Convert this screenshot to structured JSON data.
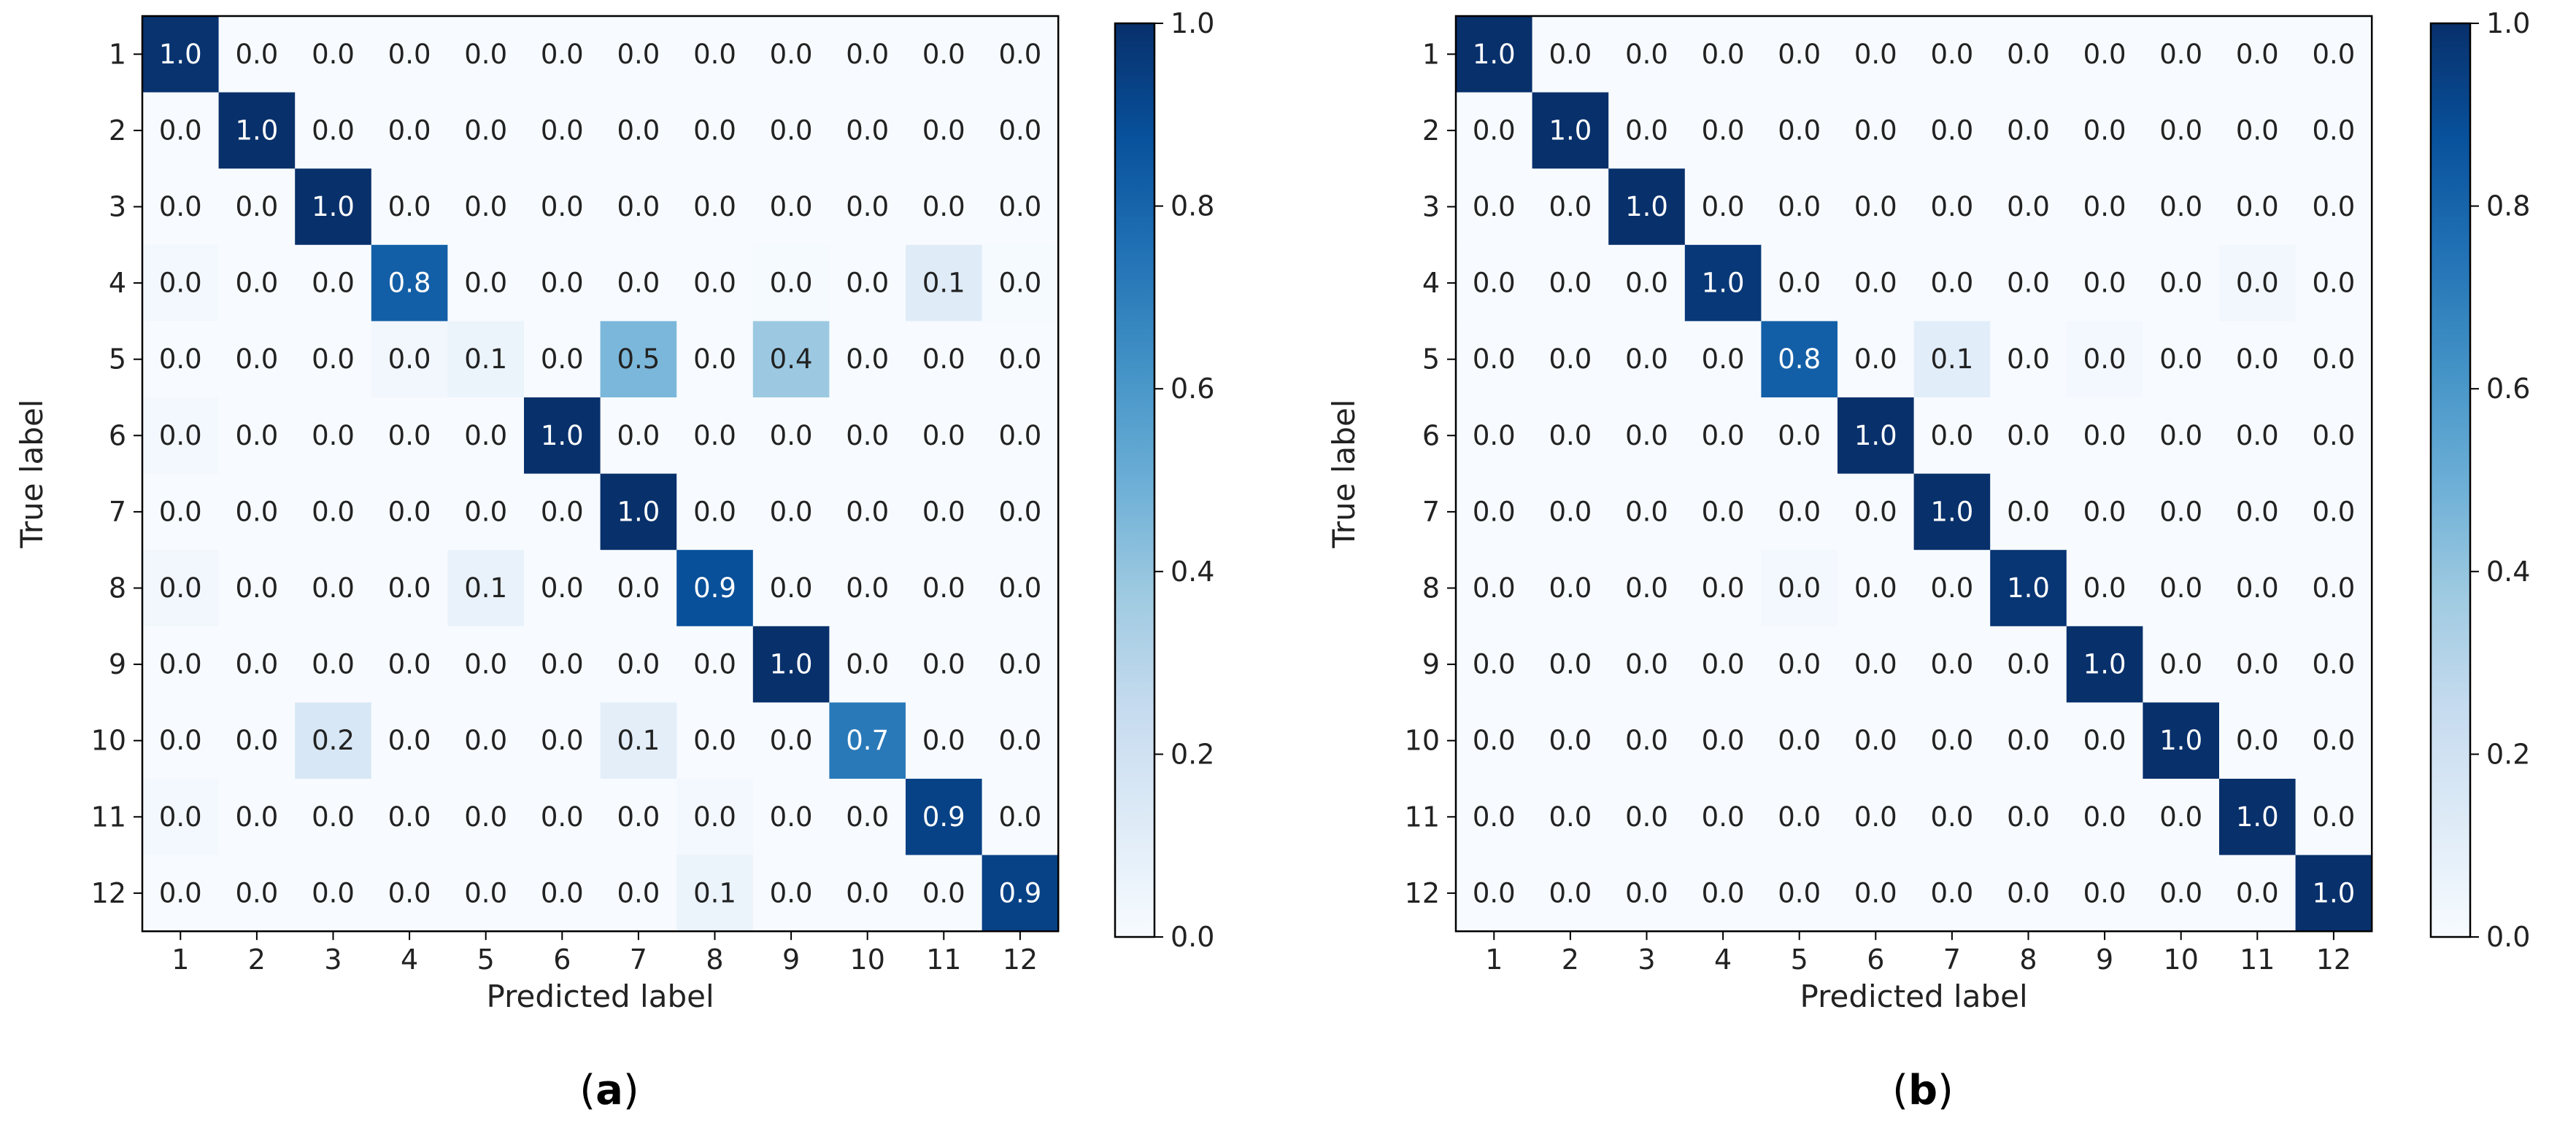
{
  "chart_data": [
    {
      "type": "heatmap",
      "panel_label": "(a)",
      "panel_letter": "a",
      "xlabel": "Predicted label",
      "ylabel": "True label",
      "x_ticks": [
        "1",
        "2",
        "3",
        "4",
        "5",
        "6",
        "7",
        "8",
        "9",
        "10",
        "11",
        "12"
      ],
      "y_ticks": [
        "1",
        "2",
        "3",
        "4",
        "5",
        "6",
        "7",
        "8",
        "9",
        "10",
        "11",
        "12"
      ],
      "colorbar": {
        "range": [
          0.0,
          1.0
        ],
        "ticks": [
          "0.0",
          "0.2",
          "0.4",
          "0.6",
          "0.8",
          "1.0"
        ],
        "colormap": "Blues"
      },
      "matrix": [
        [
          0.99,
          0.0,
          0.0,
          0.0,
          0.0,
          0.0,
          0.0,
          0.0,
          0.0,
          0.0,
          0.0,
          0.0
        ],
        [
          0.0,
          1.0,
          0.0,
          0.0,
          0.0,
          0.0,
          0.0,
          0.0,
          0.0,
          0.0,
          0.0,
          0.0
        ],
        [
          0.0,
          0.0,
          1.0,
          0.0,
          0.0,
          0.0,
          0.0,
          0.0,
          0.0,
          0.0,
          0.0,
          0.0
        ],
        [
          0.02,
          0.0,
          0.0,
          0.82,
          0.0,
          0.0,
          0.0,
          0.0,
          0.01,
          0.0,
          0.12,
          0.01
        ],
        [
          0.0,
          0.0,
          0.0,
          0.03,
          0.06,
          0.0,
          0.46,
          0.0,
          0.38,
          0.0,
          0.0,
          0.0
        ],
        [
          0.02,
          0.0,
          0.0,
          0.0,
          0.0,
          1.0,
          0.0,
          0.0,
          0.0,
          0.0,
          0.0,
          0.0
        ],
        [
          0.0,
          0.0,
          0.0,
          0.0,
          0.0,
          0.0,
          1.0,
          0.0,
          0.0,
          0.0,
          0.0,
          0.0
        ],
        [
          0.03,
          0.0,
          0.0,
          0.0,
          0.07,
          0.0,
          0.0,
          0.88,
          0.0,
          0.0,
          0.0,
          0.0
        ],
        [
          0.0,
          0.0,
          0.0,
          0.0,
          0.0,
          0.0,
          0.0,
          0.0,
          1.0,
          0.0,
          0.0,
          0.0
        ],
        [
          0.0,
          0.0,
          0.16,
          0.0,
          0.0,
          0.0,
          0.1,
          0.0,
          0.0,
          0.72,
          0.0,
          0.0
        ],
        [
          0.02,
          0.0,
          0.0,
          0.0,
          0.0,
          0.0,
          0.0,
          0.02,
          0.0,
          0.0,
          0.93,
          0.0
        ],
        [
          0.0,
          0.0,
          0.0,
          0.0,
          0.0,
          0.0,
          0.0,
          0.06,
          0.0,
          0.0,
          0.0,
          0.93
        ]
      ],
      "cell_labels": [
        [
          "1.0",
          "0.0",
          "0.0",
          "0.0",
          "0.0",
          "0.0",
          "0.0",
          "0.0",
          "0.0",
          "0.0",
          "0.0",
          "0.0"
        ],
        [
          "0.0",
          "1.0",
          "0.0",
          "0.0",
          "0.0",
          "0.0",
          "0.0",
          "0.0",
          "0.0",
          "0.0",
          "0.0",
          "0.0"
        ],
        [
          "0.0",
          "0.0",
          "1.0",
          "0.0",
          "0.0",
          "0.0",
          "0.0",
          "0.0",
          "0.0",
          "0.0",
          "0.0",
          "0.0"
        ],
        [
          "0.0",
          "0.0",
          "0.0",
          "0.8",
          "0.0",
          "0.0",
          "0.0",
          "0.0",
          "0.0",
          "0.0",
          "0.1",
          "0.0"
        ],
        [
          "0.0",
          "0.0",
          "0.0",
          "0.0",
          "0.1",
          "0.0",
          "0.5",
          "0.0",
          "0.4",
          "0.0",
          "0.0",
          "0.0"
        ],
        [
          "0.0",
          "0.0",
          "0.0",
          "0.0",
          "0.0",
          "1.0",
          "0.0",
          "0.0",
          "0.0",
          "0.0",
          "0.0",
          "0.0"
        ],
        [
          "0.0",
          "0.0",
          "0.0",
          "0.0",
          "0.0",
          "0.0",
          "1.0",
          "0.0",
          "0.0",
          "0.0",
          "0.0",
          "0.0"
        ],
        [
          "0.0",
          "0.0",
          "0.0",
          "0.0",
          "0.1",
          "0.0",
          "0.0",
          "0.9",
          "0.0",
          "0.0",
          "0.0",
          "0.0"
        ],
        [
          "0.0",
          "0.0",
          "0.0",
          "0.0",
          "0.0",
          "0.0",
          "0.0",
          "0.0",
          "1.0",
          "0.0",
          "0.0",
          "0.0"
        ],
        [
          "0.0",
          "0.0",
          "0.2",
          "0.0",
          "0.0",
          "0.0",
          "0.1",
          "0.0",
          "0.0",
          "0.7",
          "0.0",
          "0.0"
        ],
        [
          "0.0",
          "0.0",
          "0.0",
          "0.0",
          "0.0",
          "0.0",
          "0.0",
          "0.0",
          "0.0",
          "0.0",
          "0.9",
          "0.0"
        ],
        [
          "0.0",
          "0.0",
          "0.0",
          "0.0",
          "0.0",
          "0.0",
          "0.0",
          "0.1",
          "0.0",
          "0.0",
          "0.0",
          "0.9"
        ]
      ]
    },
    {
      "type": "heatmap",
      "panel_label": "(b)",
      "panel_letter": "b",
      "xlabel": "Predicted label",
      "ylabel": "True label",
      "x_ticks": [
        "1",
        "2",
        "3",
        "4",
        "5",
        "6",
        "7",
        "8",
        "9",
        "10",
        "11",
        "12"
      ],
      "y_ticks": [
        "1",
        "2",
        "3",
        "4",
        "5",
        "6",
        "7",
        "8",
        "9",
        "10",
        "11",
        "12"
      ],
      "colorbar": {
        "range": [
          0.0,
          1.0
        ],
        "ticks": [
          "0.0",
          "0.2",
          "0.4",
          "0.6",
          "0.8",
          "1.0"
        ],
        "colormap": "Blues"
      },
      "matrix": [
        [
          1.0,
          0.0,
          0.0,
          0.0,
          0.0,
          0.0,
          0.0,
          0.0,
          0.0,
          0.0,
          0.0,
          0.0
        ],
        [
          0.0,
          1.0,
          0.0,
          0.0,
          0.0,
          0.0,
          0.0,
          0.0,
          0.0,
          0.0,
          0.0,
          0.0
        ],
        [
          0.0,
          0.0,
          1.0,
          0.0,
          0.0,
          0.0,
          0.0,
          0.0,
          0.0,
          0.0,
          0.0,
          0.0
        ],
        [
          0.0,
          0.0,
          0.0,
          0.97,
          0.0,
          0.0,
          0.0,
          0.0,
          0.0,
          0.0,
          0.03,
          0.0
        ],
        [
          0.0,
          0.0,
          0.0,
          0.0,
          0.82,
          0.0,
          0.11,
          0.0,
          0.02,
          0.0,
          0.0,
          0.0
        ],
        [
          0.0,
          0.0,
          0.0,
          0.0,
          0.0,
          1.0,
          0.0,
          0.0,
          0.0,
          0.0,
          0.0,
          0.0
        ],
        [
          0.0,
          0.0,
          0.0,
          0.0,
          0.0,
          0.0,
          1.0,
          0.0,
          0.0,
          0.0,
          0.0,
          0.0
        ],
        [
          0.0,
          0.0,
          0.0,
          0.0,
          0.02,
          0.0,
          0.0,
          0.98,
          0.0,
          0.0,
          0.0,
          0.0
        ],
        [
          0.0,
          0.0,
          0.0,
          0.0,
          0.0,
          0.0,
          0.0,
          0.0,
          1.0,
          0.0,
          0.0,
          0.0
        ],
        [
          0.0,
          0.0,
          0.0,
          0.0,
          0.0,
          0.0,
          0.0,
          0.0,
          0.0,
          1.0,
          0.0,
          0.0
        ],
        [
          0.0,
          0.0,
          0.0,
          0.0,
          0.0,
          0.0,
          0.0,
          0.0,
          0.0,
          0.0,
          1.0,
          0.0
        ],
        [
          0.0,
          0.0,
          0.0,
          0.0,
          0.0,
          0.0,
          0.0,
          0.0,
          0.0,
          0.0,
          0.0,
          1.0
        ]
      ],
      "cell_labels": [
        [
          "1.0",
          "0.0",
          "0.0",
          "0.0",
          "0.0",
          "0.0",
          "0.0",
          "0.0",
          "0.0",
          "0.0",
          "0.0",
          "0.0"
        ],
        [
          "0.0",
          "1.0",
          "0.0",
          "0.0",
          "0.0",
          "0.0",
          "0.0",
          "0.0",
          "0.0",
          "0.0",
          "0.0",
          "0.0"
        ],
        [
          "0.0",
          "0.0",
          "1.0",
          "0.0",
          "0.0",
          "0.0",
          "0.0",
          "0.0",
          "0.0",
          "0.0",
          "0.0",
          "0.0"
        ],
        [
          "0.0",
          "0.0",
          "0.0",
          "1.0",
          "0.0",
          "0.0",
          "0.0",
          "0.0",
          "0.0",
          "0.0",
          "0.0",
          "0.0"
        ],
        [
          "0.0",
          "0.0",
          "0.0",
          "0.0",
          "0.8",
          "0.0",
          "0.1",
          "0.0",
          "0.0",
          "0.0",
          "0.0",
          "0.0"
        ],
        [
          "0.0",
          "0.0",
          "0.0",
          "0.0",
          "0.0",
          "1.0",
          "0.0",
          "0.0",
          "0.0",
          "0.0",
          "0.0",
          "0.0"
        ],
        [
          "0.0",
          "0.0",
          "0.0",
          "0.0",
          "0.0",
          "0.0",
          "1.0",
          "0.0",
          "0.0",
          "0.0",
          "0.0",
          "0.0"
        ],
        [
          "0.0",
          "0.0",
          "0.0",
          "0.0",
          "0.0",
          "0.0",
          "0.0",
          "1.0",
          "0.0",
          "0.0",
          "0.0",
          "0.0"
        ],
        [
          "0.0",
          "0.0",
          "0.0",
          "0.0",
          "0.0",
          "0.0",
          "0.0",
          "0.0",
          "1.0",
          "0.0",
          "0.0",
          "0.0"
        ],
        [
          "0.0",
          "0.0",
          "0.0",
          "0.0",
          "0.0",
          "0.0",
          "0.0",
          "0.0",
          "0.0",
          "1.0",
          "0.0",
          "0.0"
        ],
        [
          "0.0",
          "0.0",
          "0.0",
          "0.0",
          "0.0",
          "0.0",
          "0.0",
          "0.0",
          "0.0",
          "0.0",
          "1.0",
          "0.0"
        ],
        [
          "0.0",
          "0.0",
          "0.0",
          "0.0",
          "0.0",
          "0.0",
          "0.0",
          "0.0",
          "0.0",
          "0.0",
          "0.0",
          "1.0"
        ]
      ]
    }
  ]
}
